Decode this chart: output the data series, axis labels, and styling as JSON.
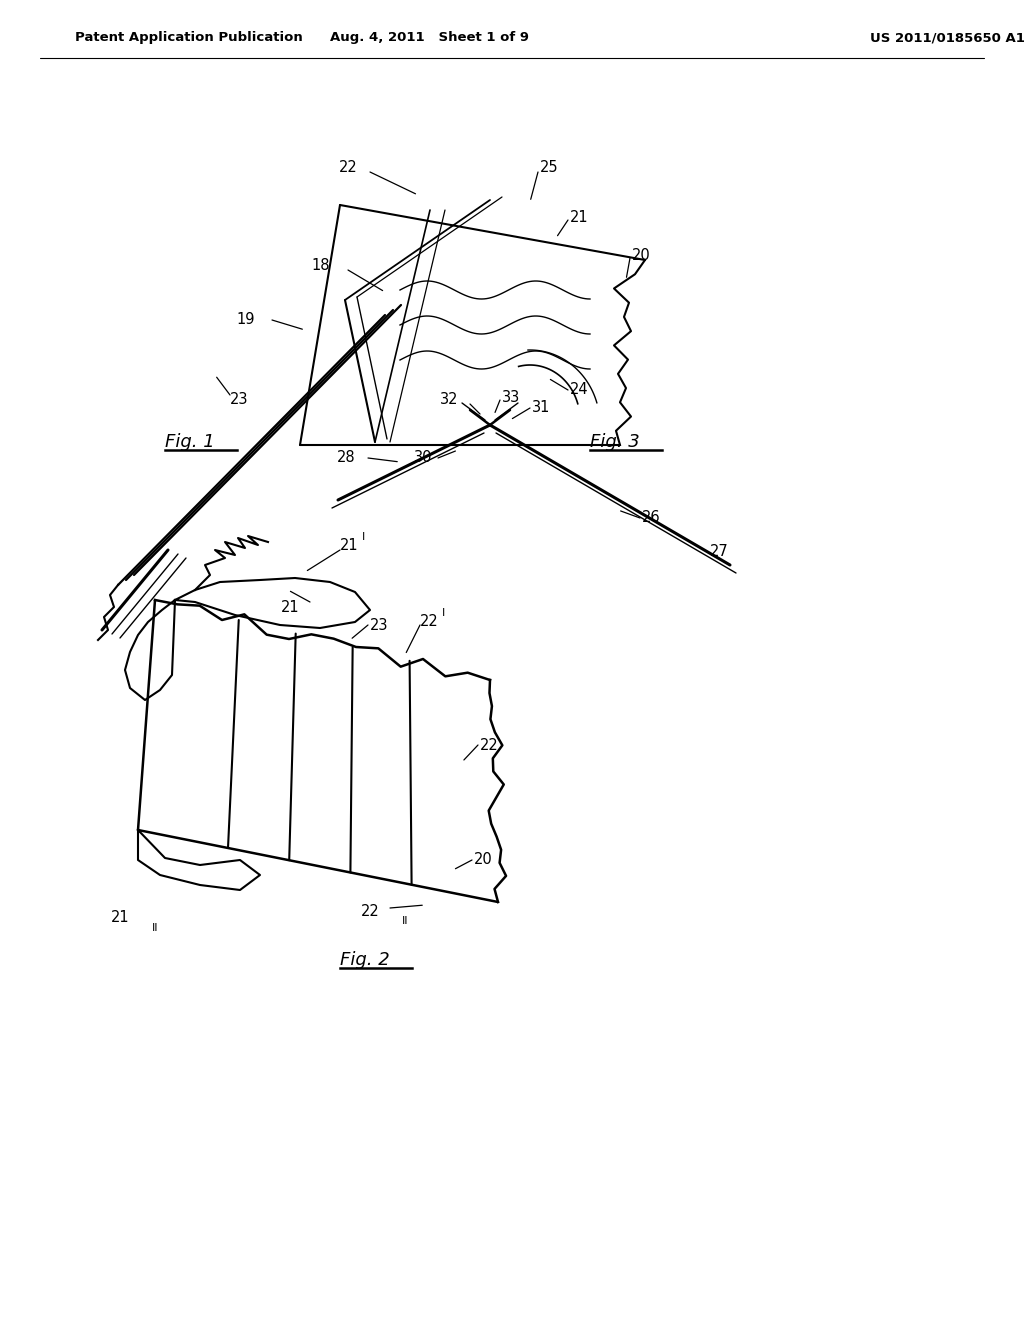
{
  "bg_color": "#ffffff",
  "line_color": "#000000",
  "header_left": "Patent Application Publication",
  "header_center": "Aug. 4, 2011   Sheet 1 of 9",
  "header_right": "US 2011/0185650 A1"
}
